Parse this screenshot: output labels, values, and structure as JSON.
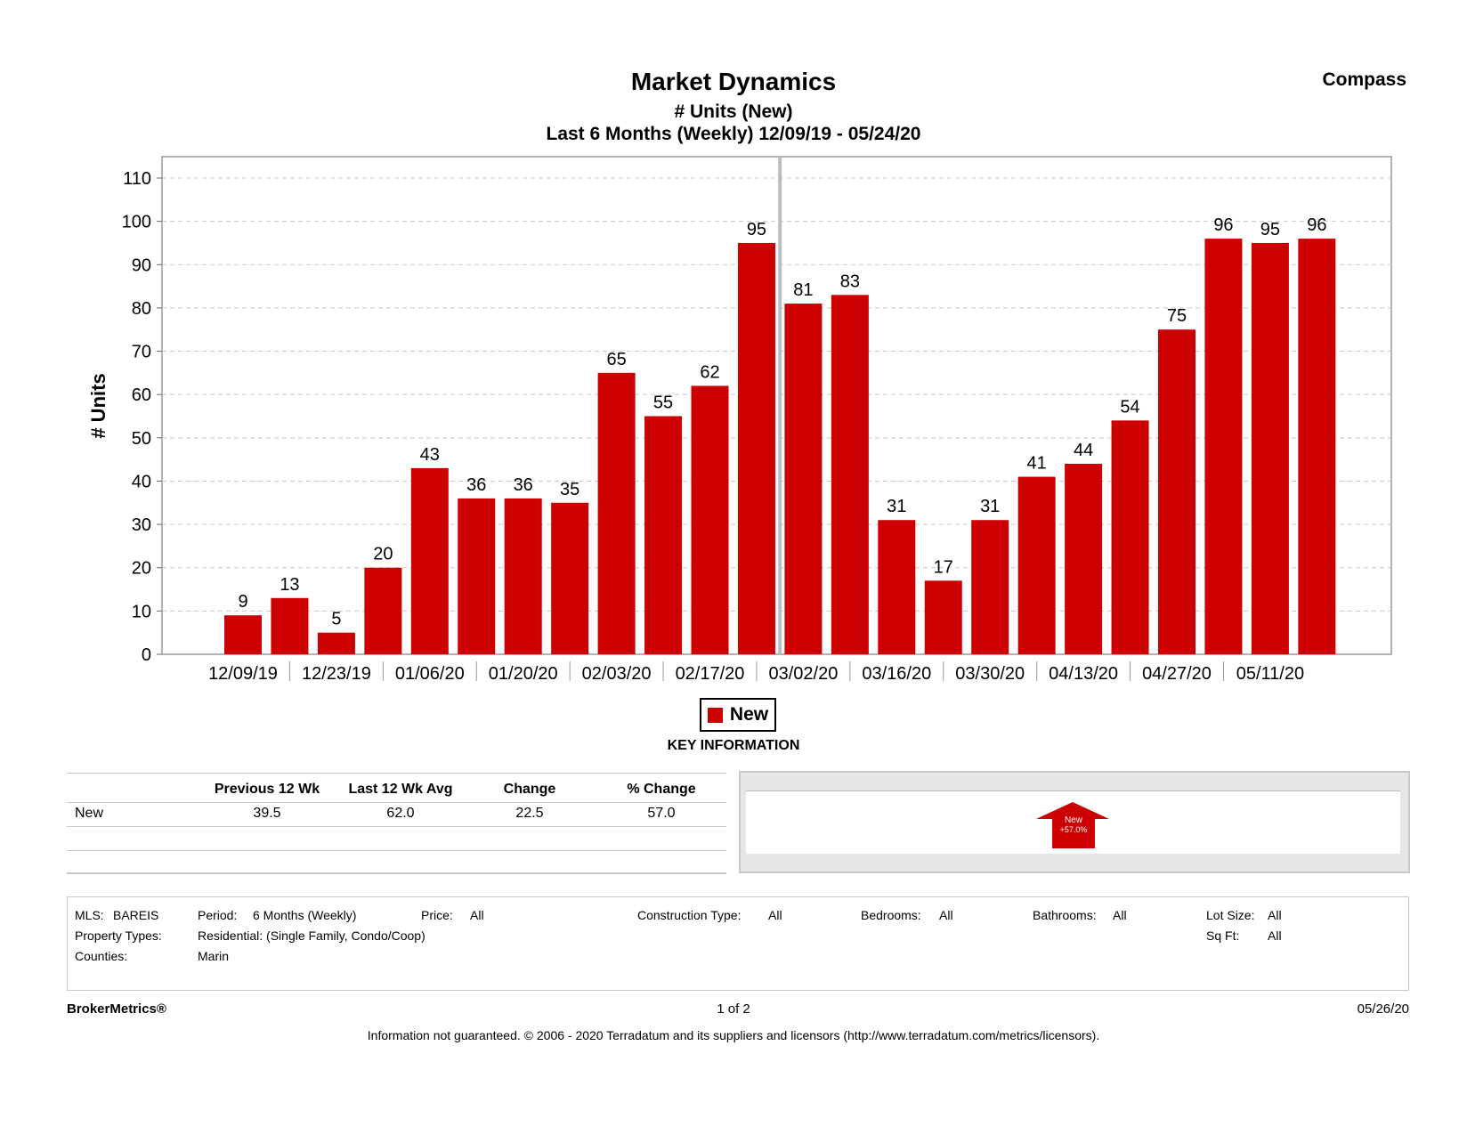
{
  "header": {
    "title": "Market Dynamics",
    "subtitle1": "# Units (New)",
    "subtitle2": "Last 6 Months (Weekly) 12/09/19 - 05/24/20",
    "brand": "Compass"
  },
  "chart_data": {
    "type": "bar",
    "ylabel": "# Units",
    "ylim": [
      0,
      110
    ],
    "yticks": [
      0,
      10,
      20,
      30,
      40,
      50,
      60,
      70,
      80,
      90,
      100,
      110
    ],
    "bar_color": "#cc0000",
    "grid": true,
    "xtick_labels": [
      "12/09/19",
      "12/23/19",
      "01/06/20",
      "01/20/20",
      "02/03/20",
      "02/17/20",
      "03/02/20",
      "03/16/20",
      "03/30/20",
      "04/13/20",
      "04/27/20",
      "05/11/20"
    ],
    "series": [
      {
        "name": "New",
        "values": [
          9,
          13,
          5,
          20,
          43,
          36,
          36,
          35,
          65,
          55,
          62,
          95,
          81,
          83,
          31,
          17,
          31,
          41,
          44,
          54,
          75,
          96,
          95,
          96
        ]
      }
    ],
    "legend": "New"
  },
  "key_info": {
    "label": "KEY INFORMATION",
    "columns": [
      "Previous 12 Wk",
      "Last 12 Wk Avg",
      "Change",
      "% Change"
    ],
    "rows": [
      {
        "name": "New",
        "values": [
          "39.5",
          "62.0",
          "22.5",
          "57.0"
        ]
      }
    ],
    "indicator": {
      "line1": "New",
      "line2": "+57.0%"
    }
  },
  "criteria": {
    "mls_label": "MLS:",
    "mls_value": "BAREIS",
    "period_label": "Period:",
    "period_value": "6 Months (Weekly)",
    "price_label": "Price:",
    "price_value": "All",
    "construction_label": "Construction Type:",
    "construction_value": "All",
    "bedrooms_label": "Bedrooms:",
    "bedrooms_value": "All",
    "bathrooms_label": "Bathrooms:",
    "bathrooms_value": "All",
    "lot_label": "Lot Size:",
    "lot_value": "All",
    "proptype_label": "Property Types:",
    "proptype_value": "Residential: (Single Family, Condo/Coop)",
    "sqft_label": "Sq Ft:",
    "sqft_value": "All",
    "counties_label": "Counties:",
    "counties_value": "Marin"
  },
  "footer": {
    "left": "BrokerMetrics®",
    "page": "1 of 2",
    "date": "05/26/20",
    "disclaimer": "Information not guaranteed.  © 2006 - 2020 Terradatum and its suppliers and licensors (http://www.terradatum.com/metrics/licensors)."
  }
}
